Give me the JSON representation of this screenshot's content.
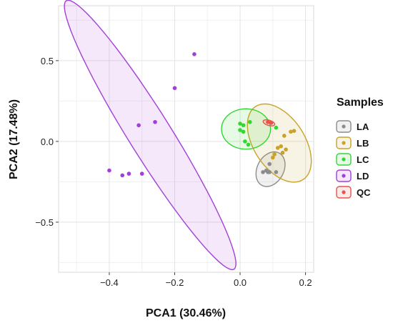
{
  "chart_data": {
    "type": "scatter",
    "xlabel": "PCA1 (30.46%)",
    "ylabel": "PCA2 (17.48%)",
    "xlim": [
      -0.555,
      0.225
    ],
    "ylim": [
      -0.81,
      0.84
    ],
    "x_ticks": [
      -0.4,
      -0.2,
      0.0,
      0.2
    ],
    "x_tick_labels": [
      "−0.4",
      "−0.2",
      "0.0",
      "0.2"
    ],
    "y_ticks": [
      -0.5,
      0.0,
      0.5
    ],
    "y_tick_labels": [
      "−0.5",
      "0.0",
      "0.5"
    ],
    "grid": true,
    "legend": {
      "title": "Samples",
      "position": "right"
    },
    "series": [
      {
        "name": "LA",
        "color": "#8c8c8c",
        "points": [
          [
            0.09,
            -0.14
          ],
          [
            0.08,
            -0.18
          ],
          [
            0.09,
            -0.19
          ],
          [
            0.085,
            -0.19
          ],
          [
            0.07,
            -0.19
          ],
          [
            0.11,
            -0.19
          ]
        ],
        "ellipse": {
          "cx": 0.093,
          "cy": -0.172,
          "rx": 0.056,
          "ry": 0.082,
          "angle": 62
        }
      },
      {
        "name": "LB",
        "color": "#c9a227",
        "points": [
          [
            0.165,
            0.065
          ],
          [
            0.155,
            0.06
          ],
          [
            0.135,
            0.035
          ],
          [
            0.125,
            -0.03
          ],
          [
            0.14,
            -0.05
          ],
          [
            0.115,
            -0.04
          ],
          [
            0.13,
            -0.07
          ],
          [
            0.105,
            -0.08
          ],
          [
            0.1,
            -0.1
          ]
        ],
        "ellipse": {
          "cx": 0.12,
          "cy": -0.01,
          "rx": 0.078,
          "ry": 0.27,
          "angle": 33
        }
      },
      {
        "name": "LC",
        "color": "#33d633",
        "points": [
          [
            0.0,
            0.11
          ],
          [
            0.01,
            0.1
          ],
          [
            0.03,
            0.12
          ],
          [
            0.0,
            0.07
          ],
          [
            0.01,
            0.06
          ],
          [
            0.015,
            0.0
          ],
          [
            0.025,
            -0.02
          ],
          [
            0.11,
            0.085
          ]
        ],
        "ellipse": {
          "cx": 0.018,
          "cy": 0.077,
          "rx": 0.075,
          "ry": 0.125,
          "angle": 0
        }
      },
      {
        "name": "LD",
        "color": "#a23fd8",
        "points": [
          [
            -0.14,
            0.54
          ],
          [
            -0.2,
            0.33
          ],
          [
            -0.26,
            0.12
          ],
          [
            -0.31,
            0.1
          ],
          [
            -0.4,
            -0.18
          ],
          [
            -0.34,
            -0.2
          ],
          [
            -0.36,
            -0.21
          ],
          [
            -0.3,
            -0.2
          ]
        ],
        "ellipse": {
          "cx": -0.275,
          "cy": 0.04,
          "rx": 0.065,
          "ry": 0.98,
          "angle": 32
        }
      },
      {
        "name": "QC",
        "color": "#e8534a",
        "points": [
          [
            0.085,
            0.12
          ],
          [
            0.095,
            0.115
          ]
        ],
        "ellipse": {
          "cx": 0.088,
          "cy": 0.115,
          "rx": 0.008,
          "ry": 0.037,
          "angle": 73
        }
      }
    ]
  }
}
